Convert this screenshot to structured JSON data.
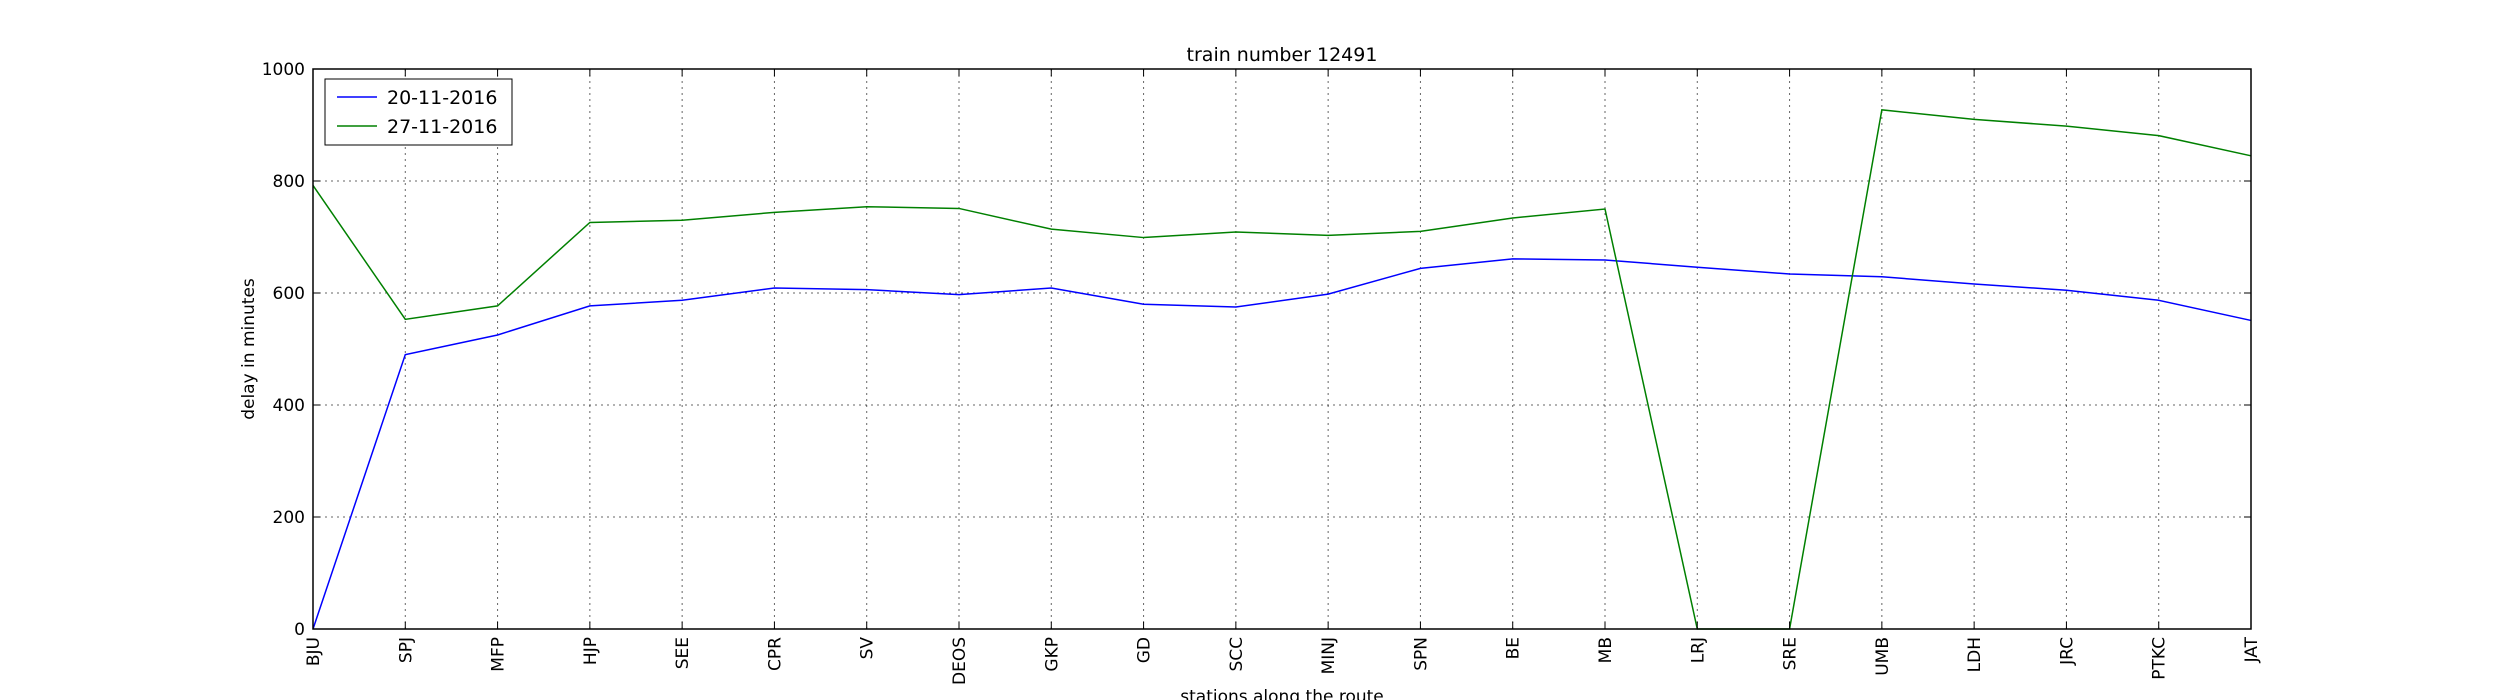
{
  "chart_data": {
    "type": "line",
    "title": "train number 12491",
    "xlabel": "stations along the route",
    "ylabel": "delay in minutes",
    "ylim": [
      0,
      1000
    ],
    "yticks": [
      "0",
      "200",
      "400",
      "600",
      "800",
      "1000"
    ],
    "grid": true,
    "legend_position": "top-left",
    "categories": [
      "BJU",
      "SPJ",
      "MFP",
      "HJP",
      "SEE",
      "CPR",
      "SV",
      "DEOS",
      "GKP",
      "GD",
      "SCC",
      "MINJ",
      "SPN",
      "BE",
      "MB",
      "LRJ",
      "SRE",
      "UMB",
      "LDH",
      "JRC",
      "PTKC",
      "JAT"
    ],
    "series": [
      {
        "name": "20-11-2016",
        "color": "#0000ff",
        "values": [
          0,
          490,
          525,
          577,
          587,
          609,
          606,
          597,
          609,
          580,
          575,
          598,
          644,
          661,
          659,
          646,
          634,
          629,
          616,
          605,
          587,
          551
        ]
      },
      {
        "name": "27-11-2016",
        "color": "#008000",
        "values": [
          792,
          553,
          577,
          726,
          730,
          744,
          754,
          751,
          714,
          699,
          709,
          703,
          710,
          734,
          750,
          0,
          0,
          927,
          910,
          898,
          881,
          845
        ]
      }
    ]
  }
}
